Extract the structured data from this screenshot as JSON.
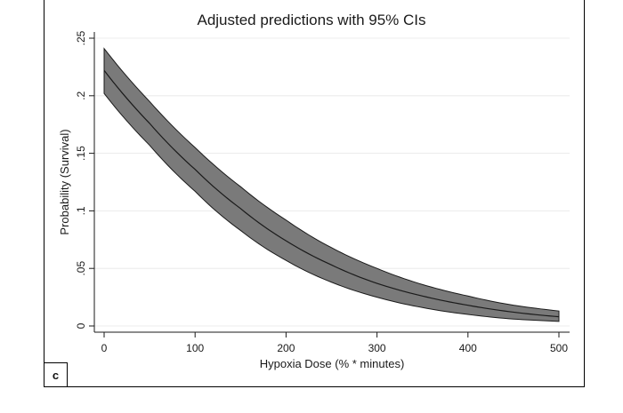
{
  "panel_label": "c",
  "chart_data": {
    "type": "area",
    "title": "Adjusted predictions with 95% CIs",
    "xlabel": "Hypoxia Dose (% * minutes)",
    "ylabel": "Probability (Survival)",
    "xlim": [
      0,
      500
    ],
    "ylim": [
      0,
      0.25
    ],
    "x_ticks": [
      0,
      100,
      200,
      300,
      400,
      500
    ],
    "x_tick_labels": [
      "0",
      "100",
      "200",
      "300",
      "400",
      "500"
    ],
    "y_ticks": [
      0,
      0.05,
      0.1,
      0.15,
      0.2,
      0.25
    ],
    "y_tick_labels": [
      "0",
      ".05",
      ".1",
      ".15",
      ".2",
      ".25"
    ],
    "grid": true,
    "colors": {
      "band_fill": "#7a7a7a",
      "band_edge": "#1a1a1a",
      "line": "#1a1a1a",
      "grid": "#e6e6e6"
    },
    "x": [
      0,
      50,
      100,
      150,
      200,
      250,
      300,
      350,
      400,
      450,
      500
    ],
    "series": [
      {
        "role": "upper",
        "values": [
          0.241,
          0.195,
          0.155,
          0.121,
          0.092,
          0.068,
          0.05,
          0.036,
          0.026,
          0.018,
          0.013
        ]
      },
      {
        "role": "prediction",
        "values": [
          0.222,
          0.176,
          0.136,
          0.102,
          0.074,
          0.053,
          0.037,
          0.026,
          0.018,
          0.012,
          0.008
        ]
      },
      {
        "role": "lower",
        "values": [
          0.202,
          0.157,
          0.117,
          0.083,
          0.057,
          0.038,
          0.025,
          0.016,
          0.01,
          0.006,
          0.004
        ]
      }
    ]
  }
}
